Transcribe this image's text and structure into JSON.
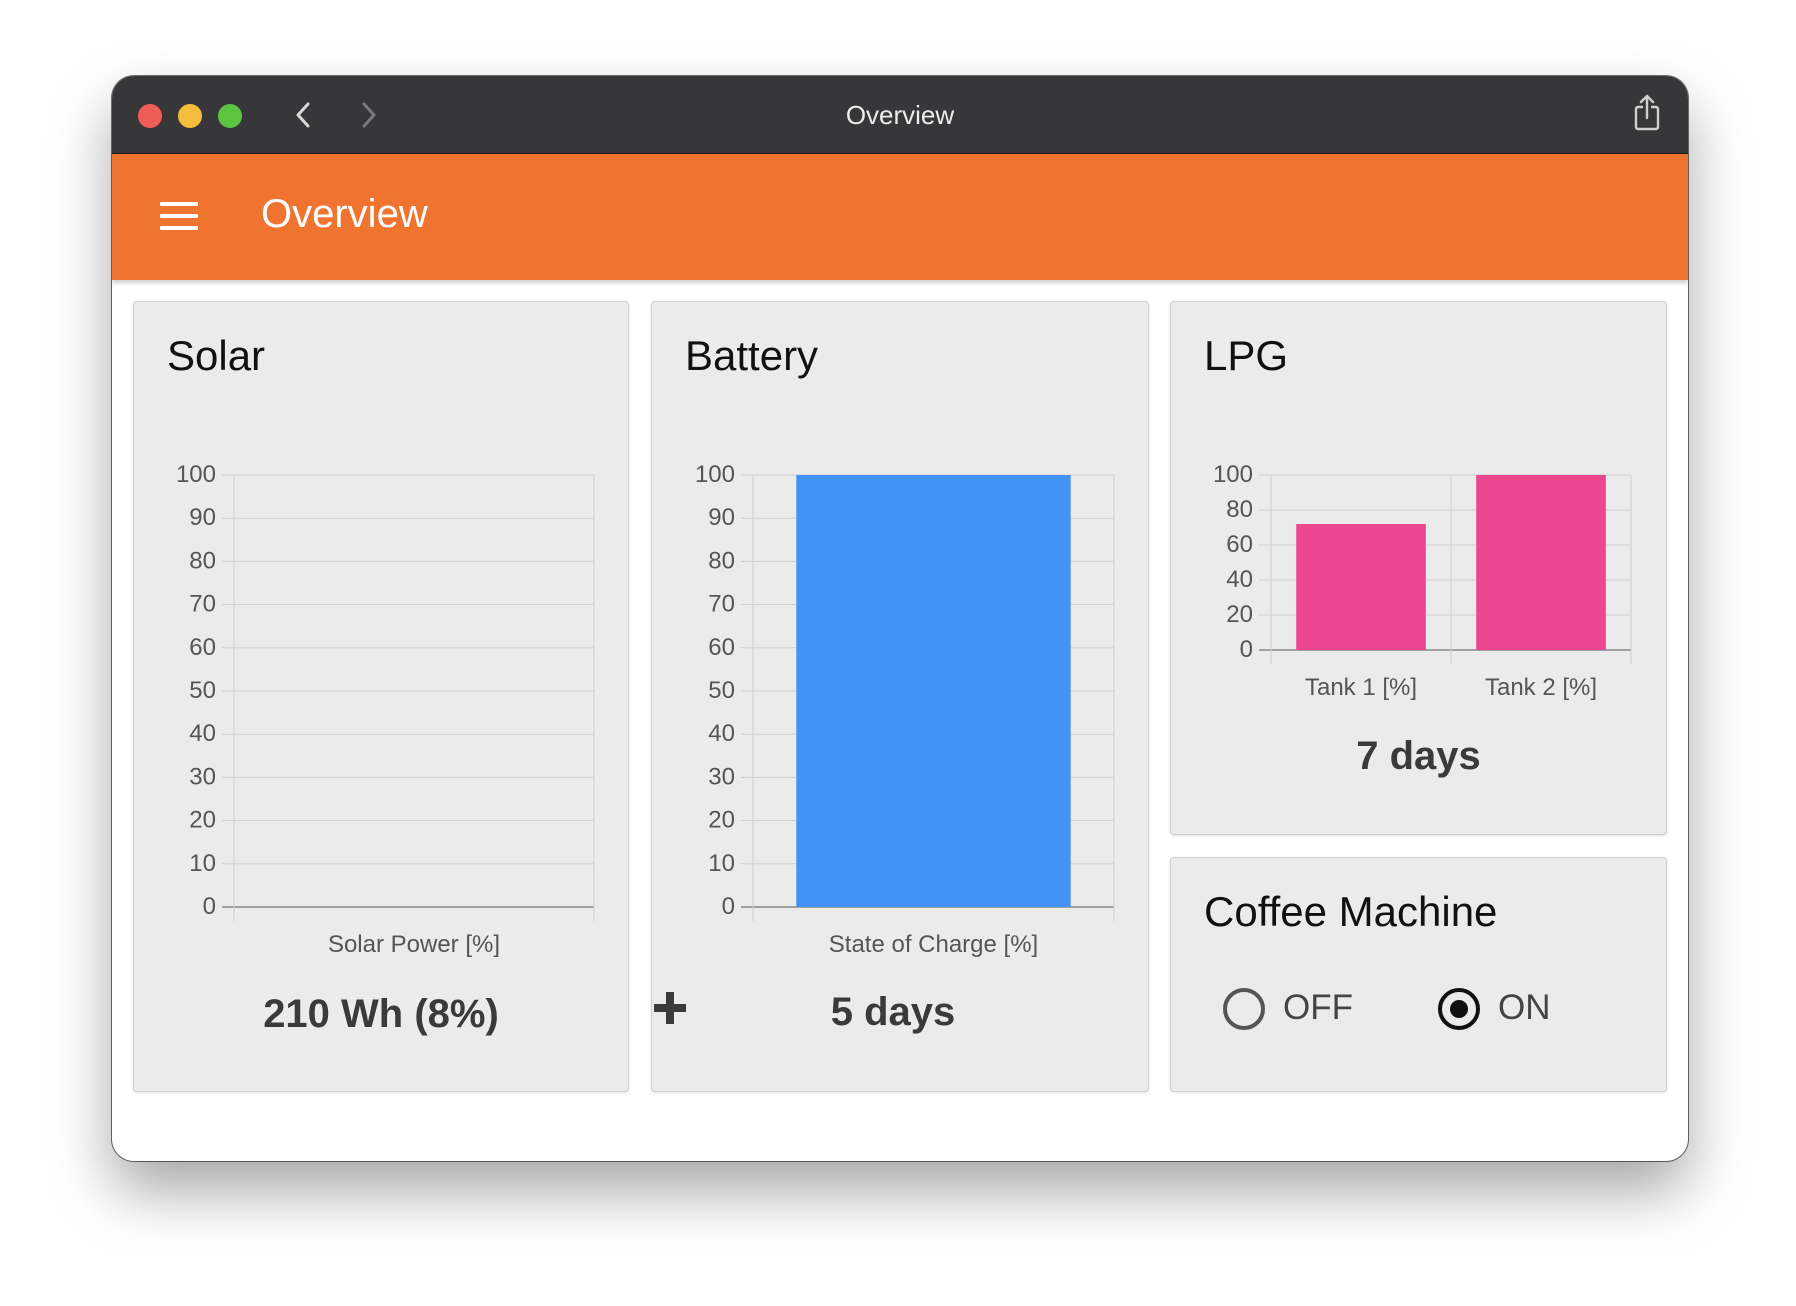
{
  "window": {
    "title": "Overview"
  },
  "appbar": {
    "title": "Overview"
  },
  "solar": {
    "title": "Solar",
    "summary": "210 Wh (8%)",
    "chart_data": {
      "type": "bar",
      "categories": [
        "Solar Power [%]"
      ],
      "values": [
        0
      ],
      "ylim": [
        0,
        100
      ],
      "yticks": [
        0,
        10,
        20,
        30,
        40,
        50,
        60,
        70,
        80,
        90,
        100
      ],
      "grid": true,
      "bar_color": "#4293f5"
    }
  },
  "battery": {
    "title": "Battery",
    "summary": "5 days",
    "chart_data": {
      "type": "bar",
      "categories": [
        "State of Charge [%]"
      ],
      "values": [
        100
      ],
      "ylim": [
        0,
        100
      ],
      "yticks": [
        0,
        10,
        20,
        30,
        40,
        50,
        60,
        70,
        80,
        90,
        100
      ],
      "grid": true,
      "bar_color": "#4293f5"
    }
  },
  "lpg": {
    "title": "LPG",
    "summary": "7 days",
    "chart_data": {
      "type": "bar",
      "categories": [
        "Tank 1 [%]",
        "Tank 2 [%]"
      ],
      "values": [
        72,
        100
      ],
      "ylim": [
        0,
        100
      ],
      "yticks": [
        0,
        20,
        40,
        60,
        80,
        100
      ],
      "grid": true,
      "bar_color": "#ec4690"
    }
  },
  "coffee": {
    "title": "Coffee Machine",
    "options": [
      {
        "label": "OFF",
        "selected": false
      },
      {
        "label": "ON",
        "selected": true
      }
    ]
  },
  "colors": {
    "accent": "#ef7430",
    "titlebar": "#373739",
    "card": "#ebebeb"
  },
  "icons": [
    "menu-icon",
    "chevron-left-icon",
    "chevron-right-icon",
    "share-icon",
    "plus-icon"
  ]
}
